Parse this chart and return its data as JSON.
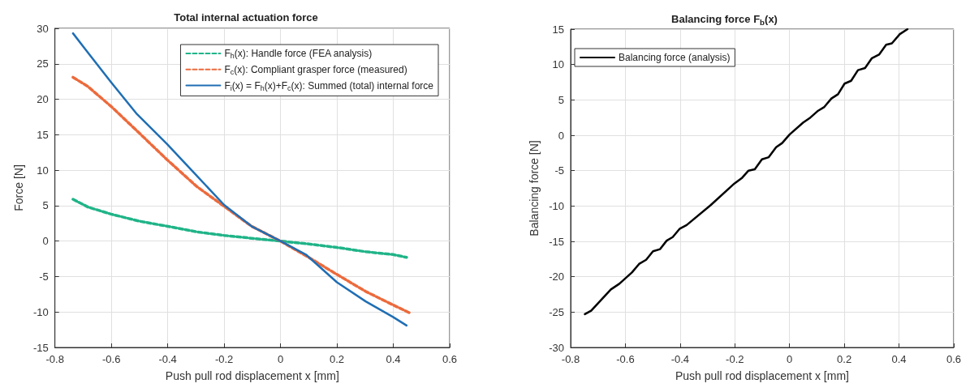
{
  "chart_data": [
    {
      "type": "line",
      "title": "Total internal actuation force",
      "xlabel": "Push pull rod displacement x [mm]",
      "ylabel": "Force [N]",
      "xlim": [
        -0.8,
        0.6
      ],
      "xticks": [
        -0.8,
        -0.6,
        -0.4,
        -0.2,
        0,
        0.2,
        0.4,
        0.6
      ],
      "ylim": [
        -15,
        30
      ],
      "yticks": [
        -15,
        -10,
        -5,
        0,
        5,
        10,
        15,
        20,
        25,
        30
      ],
      "grid": true,
      "legend": "top right",
      "marker": "none",
      "series": [
        {
          "name": "F$_{h}$(x): Handle force (FEA analysis)",
          "color": "#20b488",
          "line_style": "dashed",
          "x": [
            -0.736,
            -0.683,
            -0.601,
            -0.5,
            -0.403,
            -0.297,
            -0.2,
            -0.103,
            0,
            0.1,
            0.2,
            0.302,
            0.399,
            0.447
          ],
          "values": [
            5.9,
            4.8,
            3.8,
            2.8,
            2.1,
            1.3,
            0.8,
            0.4,
            0,
            -0.4,
            -0.9,
            -1.5,
            -1.9,
            -2.3
          ]
        },
        {
          "name": "F$_{c}$(x): Compliant grasper force (measured)",
          "color": "#ec6a3c",
          "line_style": "dashed",
          "x": [
            -0.736,
            -0.683,
            -0.601,
            -0.5,
            -0.403,
            -0.297,
            -0.2,
            -0.103,
            0,
            0.1,
            0.2,
            0.302,
            0.399,
            0.462
          ],
          "values": [
            23.1,
            21.8,
            19.0,
            15.2,
            11.5,
            7.7,
            4.9,
            2.1,
            0,
            -2.3,
            -4.7,
            -7.1,
            -9.0,
            -10.2
          ]
        },
        {
          "name": "F$_{i}$(x) = F$_{h}$(x)+F$_{c}$(x): Summed (total) internal force",
          "color": "#1f6eb4",
          "line_style": "solid",
          "x": [
            -0.736,
            -0.693,
            -0.601,
            -0.509,
            -0.403,
            -0.306,
            -0.2,
            -0.103,
            0,
            0.09,
            0.2,
            0.302,
            0.399,
            0.447
          ],
          "values": [
            29.3,
            27.1,
            22.4,
            17.9,
            13.7,
            9.6,
            5.1,
            2.1,
            0,
            -1.9,
            -5.8,
            -8.5,
            -10.7,
            -11.9
          ]
        }
      ]
    },
    {
      "type": "line",
      "title": "Balancing force F$_{b}$(x)",
      "xlabel": "Push pull rod displacement x [mm]",
      "ylabel": "Balancing force [N]",
      "xlim": [
        -0.8,
        0.6
      ],
      "xticks": [
        -0.8,
        -0.6,
        -0.4,
        -0.2,
        0,
        0.2,
        0.4,
        0.6
      ],
      "ylim": [
        -30,
        15
      ],
      "yticks": [
        -30,
        -25,
        -20,
        -15,
        -10,
        -5,
        0,
        5,
        10,
        15
      ],
      "grid": true,
      "legend": "top left",
      "marker": "none",
      "series": [
        {
          "name": "Balancing force (analysis)",
          "color": "#000000",
          "line_style": "solid",
          "x": [
            -0.748,
            -0.725,
            -0.653,
            -0.622,
            -0.576,
            -0.55,
            -0.524,
            -0.499,
            -0.473,
            -0.449,
            -0.427,
            -0.401,
            -0.376,
            -0.289,
            -0.201,
            -0.173,
            -0.15,
            -0.127,
            -0.101,
            -0.076,
            -0.049,
            -0.027,
            0,
            0.05,
            0.076,
            0.102,
            0.127,
            0.153,
            0.177,
            0.201,
            0.225,
            0.25,
            0.276,
            0.301,
            0.327,
            0.353,
            0.374,
            0.403,
            0.431
          ],
          "values": [
            -25.3,
            -24.8,
            -21.8,
            -21.0,
            -19.4,
            -18.2,
            -17.6,
            -16.4,
            -16.1,
            -14.9,
            -14.4,
            -13.2,
            -12.7,
            -9.9,
            -6.8,
            -6.0,
            -5.0,
            -4.8,
            -3.4,
            -3.1,
            -1.7,
            -1.1,
            0.1,
            1.8,
            2.5,
            3.4,
            4.0,
            5.2,
            5.8,
            7.3,
            7.7,
            9.2,
            9.5,
            10.9,
            11.4,
            12.8,
            13.0,
            14.3,
            15.0
          ]
        }
      ]
    }
  ]
}
